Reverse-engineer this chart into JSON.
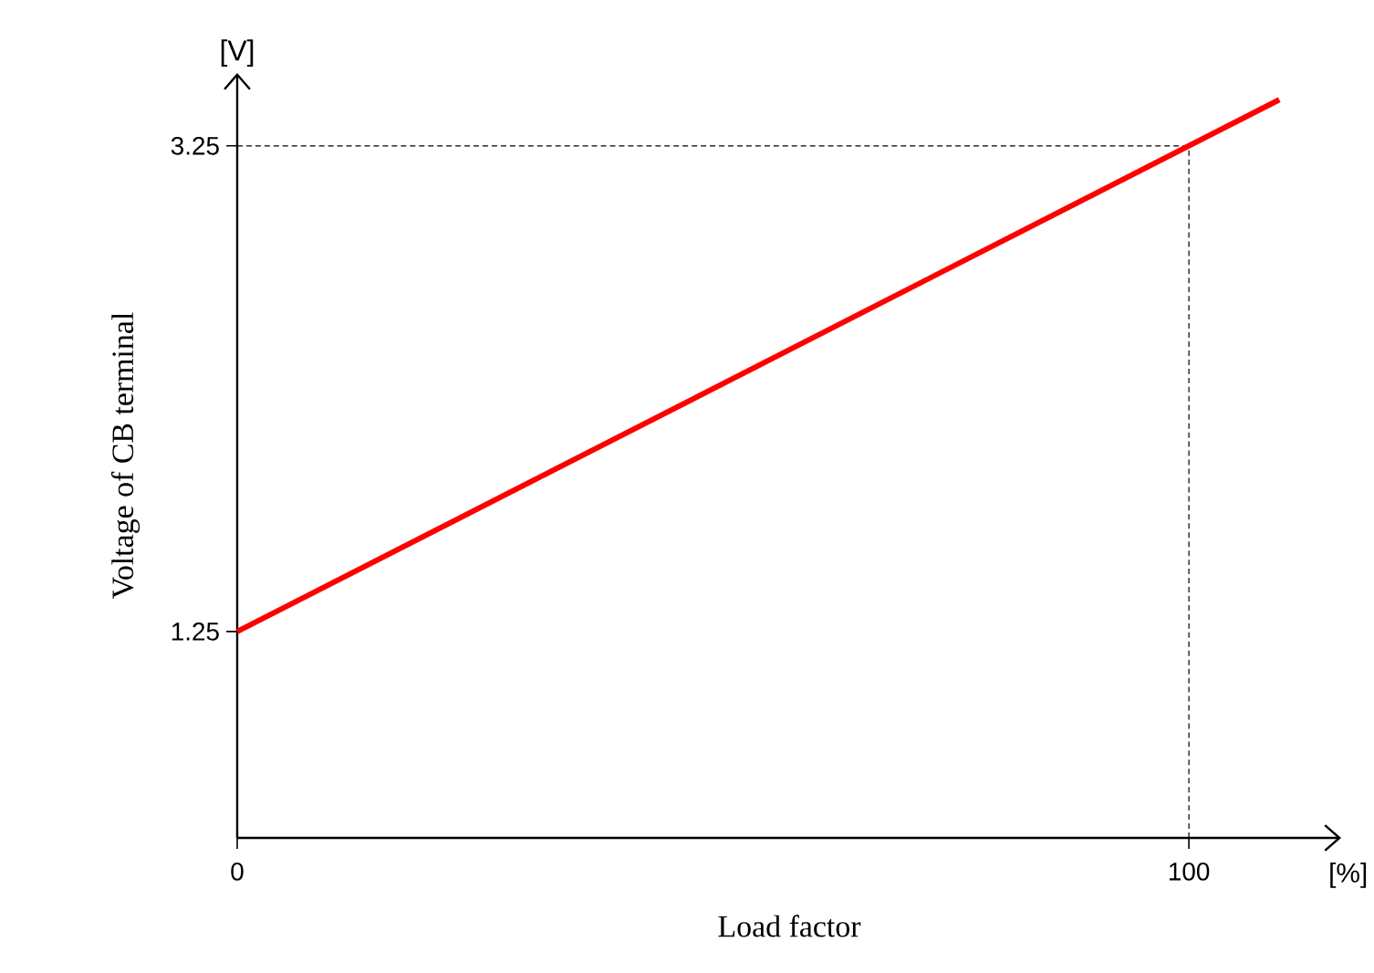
{
  "chart_data": {
    "type": "line",
    "xlabel": "Load factor",
    "ylabel": "Voltage of CB terminal",
    "x": [
      0,
      109.5
    ],
    "series": [
      {
        "color": "#ff0000",
        "values": [
          1.25,
          3.44
        ]
      }
    ],
    "xlim": [
      0,
      116
    ],
    "ylim": [
      0.4,
      3.55
    ],
    "xticks": [
      0,
      100
    ],
    "yticks": [
      1.25,
      3.25
    ],
    "ref_lines": [
      {
        "axis": "x",
        "value": 100,
        "line_style": "dashed",
        "color": "#000000"
      },
      {
        "axis": "y",
        "value": 3.25,
        "line_style": "dashed",
        "color": "#000000"
      }
    ],
    "annotations": [
      "[V]",
      "[%]"
    ],
    "grid": false,
    "marker": "none",
    "line_style": "solid"
  }
}
